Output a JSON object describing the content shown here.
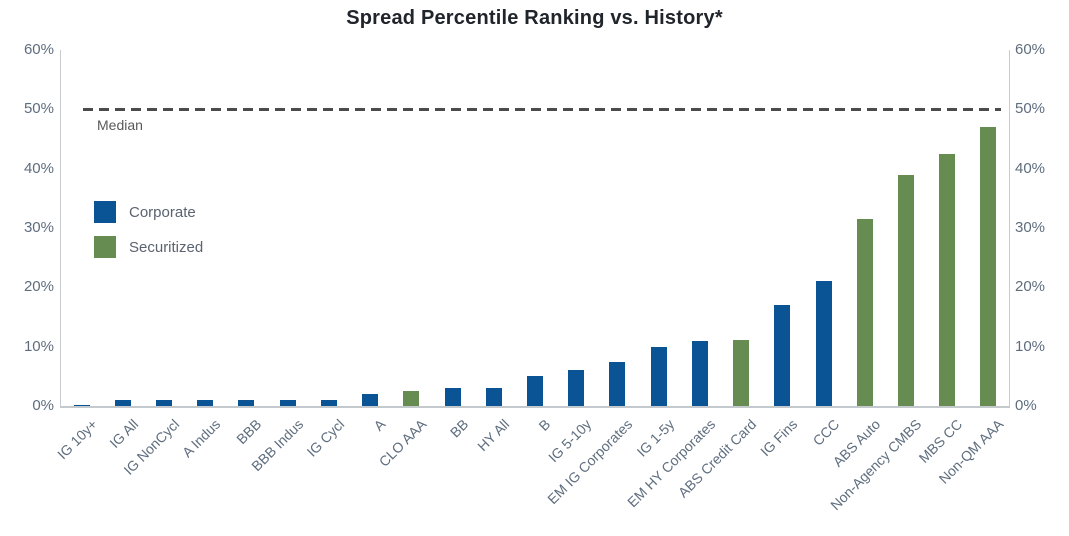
{
  "chart_data": {
    "type": "bar",
    "title": "Spread Percentile Ranking vs. History*",
    "xlabel": "",
    "ylabel": "",
    "y_unit": "%",
    "ylim": [
      0,
      60
    ],
    "grid": false,
    "yticks": [
      {
        "label": "60%",
        "value": 60
      },
      {
        "label": "50%",
        "value": 50
      },
      {
        "label": "40%",
        "value": 40
      },
      {
        "label": "30%",
        "value": 30
      },
      {
        "label": "20%",
        "value": 20
      },
      {
        "label": "10%",
        "value": 10
      },
      {
        "label": "0%",
        "value": 0
      }
    ],
    "median_line": {
      "value": 50,
      "label": "Median",
      "color": "#4b4b4b",
      "style": "dashed"
    },
    "legend_position": "upper-left-inside",
    "legend": [
      {
        "name": "Corporate",
        "color": "#0A5394"
      },
      {
        "name": "Securitized",
        "color": "#668C51"
      }
    ],
    "bars": [
      {
        "label": "IG 10y+",
        "value": 0.2,
        "group": "Corporate"
      },
      {
        "label": "IG All",
        "value": 1,
        "group": "Corporate"
      },
      {
        "label": "IG NonCycl",
        "value": 1,
        "group": "Corporate"
      },
      {
        "label": "A Indus",
        "value": 1,
        "group": "Corporate"
      },
      {
        "label": "BBB",
        "value": 1,
        "group": "Corporate"
      },
      {
        "label": "BBB Indus",
        "value": 1,
        "group": "Corporate"
      },
      {
        "label": "IG Cycl",
        "value": 1,
        "group": "Corporate"
      },
      {
        "label": "A",
        "value": 2,
        "group": "Corporate"
      },
      {
        "label": "CLO AAA",
        "value": 2.5,
        "group": "Securitized"
      },
      {
        "label": "BB",
        "value": 3,
        "group": "Corporate"
      },
      {
        "label": "HY All",
        "value": 3,
        "group": "Corporate"
      },
      {
        "label": "B",
        "value": 5,
        "group": "Corporate"
      },
      {
        "label": "IG 5-10y",
        "value": 6,
        "group": "Corporate"
      },
      {
        "label": "EM IG Corporates",
        "value": 7.5,
        "group": "Corporate"
      },
      {
        "label": "IG 1-5y",
        "value": 10,
        "group": "Corporate"
      },
      {
        "label": "EM HY Corporates",
        "value": 11,
        "group": "Corporate"
      },
      {
        "label": "ABS Credit Card",
        "value": 11.2,
        "group": "Securitized"
      },
      {
        "label": "IG Fins",
        "value": 17,
        "group": "Corporate"
      },
      {
        "label": "CCC",
        "value": 21,
        "group": "Corporate"
      },
      {
        "label": "ABS Auto",
        "value": 31.5,
        "group": "Securitized"
      },
      {
        "label": "Non-Agency CMBS",
        "value": 39,
        "group": "Securitized"
      },
      {
        "label": "MBS CC",
        "value": 42.5,
        "group": "Securitized"
      },
      {
        "label": "Non-QM AAA",
        "value": 47,
        "group": "Securitized"
      }
    ]
  },
  "colors": {
    "title_text": "#20242b",
    "axis_text": "#5e6d7e",
    "axis_line": "#c7cbd0",
    "median_text": "#595959"
  }
}
